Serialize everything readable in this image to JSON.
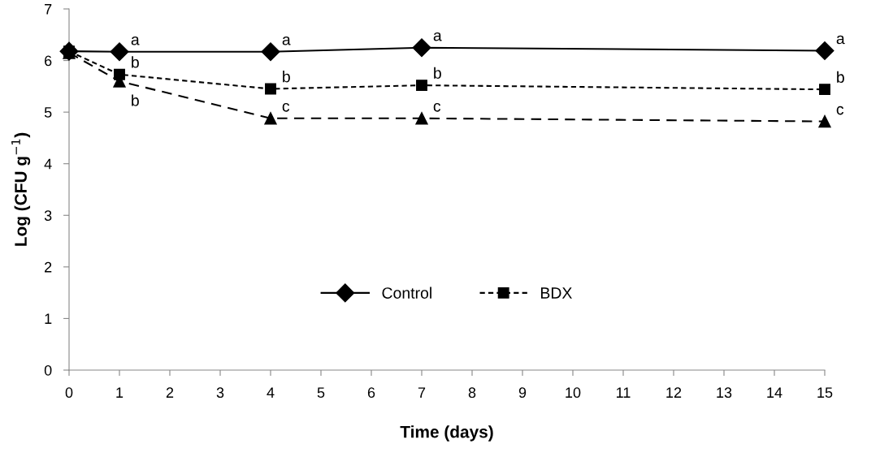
{
  "chart_data": {
    "type": "line",
    "xlabel": "Time (days)",
    "ylabel": "Log (CFU g$^{−1}$)",
    "x": [
      0,
      1,
      4,
      7,
      15
    ],
    "series": [
      {
        "name": "Control",
        "color": "#000000",
        "marker": "diamond",
        "line_style": "solid",
        "values": [
          6.18,
          6.17,
          6.17,
          6.25,
          6.19
        ]
      },
      {
        "name": "BDX",
        "color": "#000000",
        "marker": "square",
        "line_style": "dotted",
        "values": [
          6.18,
          5.73,
          5.45,
          5.52,
          5.44
        ]
      },
      {
        "color": "#000000",
        "marker": "triangle",
        "line_style": "dashed",
        "values": [
          6.15,
          5.6,
          4.88,
          4.88,
          4.82
        ]
      }
    ],
    "annotations": [
      {
        "text": "a",
        "x": 1,
        "y": 6.17
      },
      {
        "text": "a",
        "x": 4,
        "y": 6.17
      },
      {
        "text": "a",
        "x": 7,
        "y": 6.25
      },
      {
        "text": "a",
        "x": 15,
        "y": 6.19
      },
      {
        "text": "b",
        "x": 1,
        "y": 5.73
      },
      {
        "text": "b",
        "x": 4,
        "y": 5.45
      },
      {
        "text": "b",
        "x": 7,
        "y": 5.52
      },
      {
        "text": "b",
        "x": 15,
        "y": 5.44
      },
      {
        "text": "b",
        "x": 1,
        "y": 5.6
      },
      {
        "text": "c",
        "x": 4,
        "y": 4.88
      },
      {
        "text": "c",
        "x": 7,
        "y": 4.88
      },
      {
        "text": "c",
        "x": 15,
        "y": 4.82
      }
    ],
    "xlim": [
      0,
      15
    ],
    "xticks": [
      0,
      1,
      2,
      3,
      4,
      5,
      6,
      7,
      8,
      9,
      10,
      11,
      12,
      13,
      14,
      15
    ],
    "ylim": [
      0,
      7
    ],
    "yticks": [
      0,
      1,
      2,
      3,
      4,
      5,
      6,
      7
    ],
    "grid": false,
    "legend": "bottom"
  }
}
